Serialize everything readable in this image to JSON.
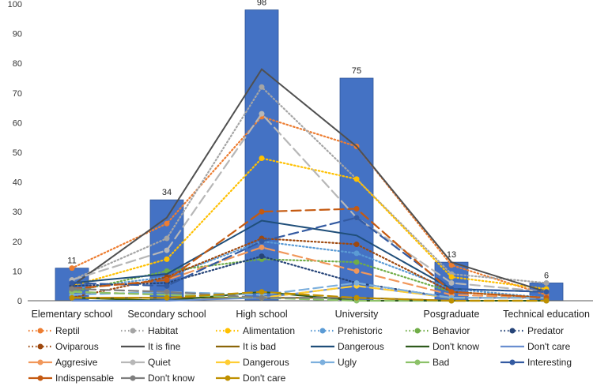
{
  "chart_data": {
    "type": "bar+line",
    "categories": [
      "Elementary school",
      "Secondary school",
      "High school",
      "University",
      "Posgraduate",
      "Technical education"
    ],
    "ylim": [
      0,
      100
    ],
    "yticks": [
      0,
      10,
      20,
      30,
      40,
      50,
      60,
      70,
      80,
      90,
      100
    ],
    "grid": false,
    "legend_position": "bottom",
    "bars": {
      "color": "#4472C4",
      "values": [
        11,
        34,
        98,
        75,
        13,
        6
      ],
      "data_labels": [
        "11",
        "34",
        "98",
        "75",
        "13",
        "6"
      ]
    },
    "series": [
      {
        "name": "Reptil",
        "style": "dotted",
        "marker": true,
        "color": "#ED7D31",
        "values": [
          11,
          26,
          62,
          52,
          12,
          2
        ]
      },
      {
        "name": "Habitat",
        "style": "dotted",
        "marker": true,
        "color": "#A5A5A5",
        "values": [
          7,
          21,
          72,
          41,
          9,
          6
        ]
      },
      {
        "name": "Alimentation",
        "style": "dotted",
        "marker": true,
        "color": "#FFC000",
        "values": [
          5,
          14,
          48,
          41,
          8,
          4
        ]
      },
      {
        "name": "Prehistoric",
        "style": "dotted",
        "marker": true,
        "color": "#5B9BD5",
        "values": [
          4,
          8,
          20,
          16,
          4,
          1
        ]
      },
      {
        "name": "Behavior",
        "style": "dotted",
        "marker": true,
        "color": "#70AD47",
        "values": [
          3,
          10,
          14,
          13,
          3,
          1
        ]
      },
      {
        "name": "Predator",
        "style": "dotted",
        "marker": true,
        "color": "#264478",
        "values": [
          5,
          6,
          15,
          6,
          1,
          1
        ]
      },
      {
        "name": "Oviparous",
        "style": "dotted",
        "marker": true,
        "color": "#9E480E",
        "values": [
          1,
          8,
          21,
          19,
          3,
          1
        ]
      },
      {
        "name": "It is fine",
        "style": "solid",
        "marker": false,
        "color": "#505050",
        "values": [
          5,
          28,
          78,
          52,
          13,
          3
        ]
      },
      {
        "name": "It is bad",
        "style": "solid",
        "marker": false,
        "color": "#8B6508",
        "values": [
          1,
          1,
          1,
          1,
          0,
          0
        ]
      },
      {
        "name": "Dangerous",
        "style": "solid",
        "marker": false,
        "color": "#1F4E79",
        "values": [
          6,
          9,
          27,
          22,
          4,
          3
        ]
      },
      {
        "name": "Don't know",
        "style": "solid",
        "marker": false,
        "color": "#2E5A1C",
        "values": [
          1,
          0,
          3,
          0,
          0,
          0
        ]
      },
      {
        "name": "Don't care",
        "style": "solid",
        "marker": false,
        "color": "#698ED0",
        "values": [
          0,
          0,
          1,
          5,
          1,
          1
        ]
      },
      {
        "name": "Aggresive",
        "style": "dashed",
        "marker": true,
        "color": "#F1975A",
        "values": [
          4,
          7,
          18,
          10,
          2,
          1
        ]
      },
      {
        "name": "Quiet",
        "style": "dashed",
        "marker": true,
        "color": "#B7B7B7",
        "values": [
          7,
          17,
          63,
          28,
          6,
          3
        ]
      },
      {
        "name": "Dangerous",
        "style": "dashed",
        "marker": true,
        "color": "#FFCD33",
        "values": [
          3,
          2,
          1,
          5,
          1,
          1
        ]
      },
      {
        "name": "Ugly",
        "style": "dashed",
        "marker": true,
        "color": "#7CAFDD",
        "values": [
          2,
          3,
          2,
          6,
          1,
          1
        ]
      },
      {
        "name": "Bad",
        "style": "dashed",
        "marker": true,
        "color": "#8CC168",
        "values": [
          3,
          2,
          1,
          0,
          0,
          0
        ]
      },
      {
        "name": "Interesting",
        "style": "dashed",
        "marker": true,
        "color": "#335AA1",
        "values": [
          6,
          5,
          20,
          28,
          4,
          3
        ]
      },
      {
        "name": "Indispensable",
        "style": "dashed",
        "marker": true,
        "color": "#C55A11",
        "values": [
          4,
          7,
          30,
          31,
          3,
          1
        ]
      },
      {
        "name": "Don't know",
        "style": "dashed",
        "marker": true,
        "color": "#7F7F7F",
        "values": [
          4,
          3,
          1,
          1,
          0,
          0
        ]
      },
      {
        "name": "Don't care",
        "style": "dashed",
        "marker": true,
        "color": "#BF9000",
        "values": [
          1,
          1,
          3,
          1,
          0,
          0
        ]
      }
    ]
  }
}
